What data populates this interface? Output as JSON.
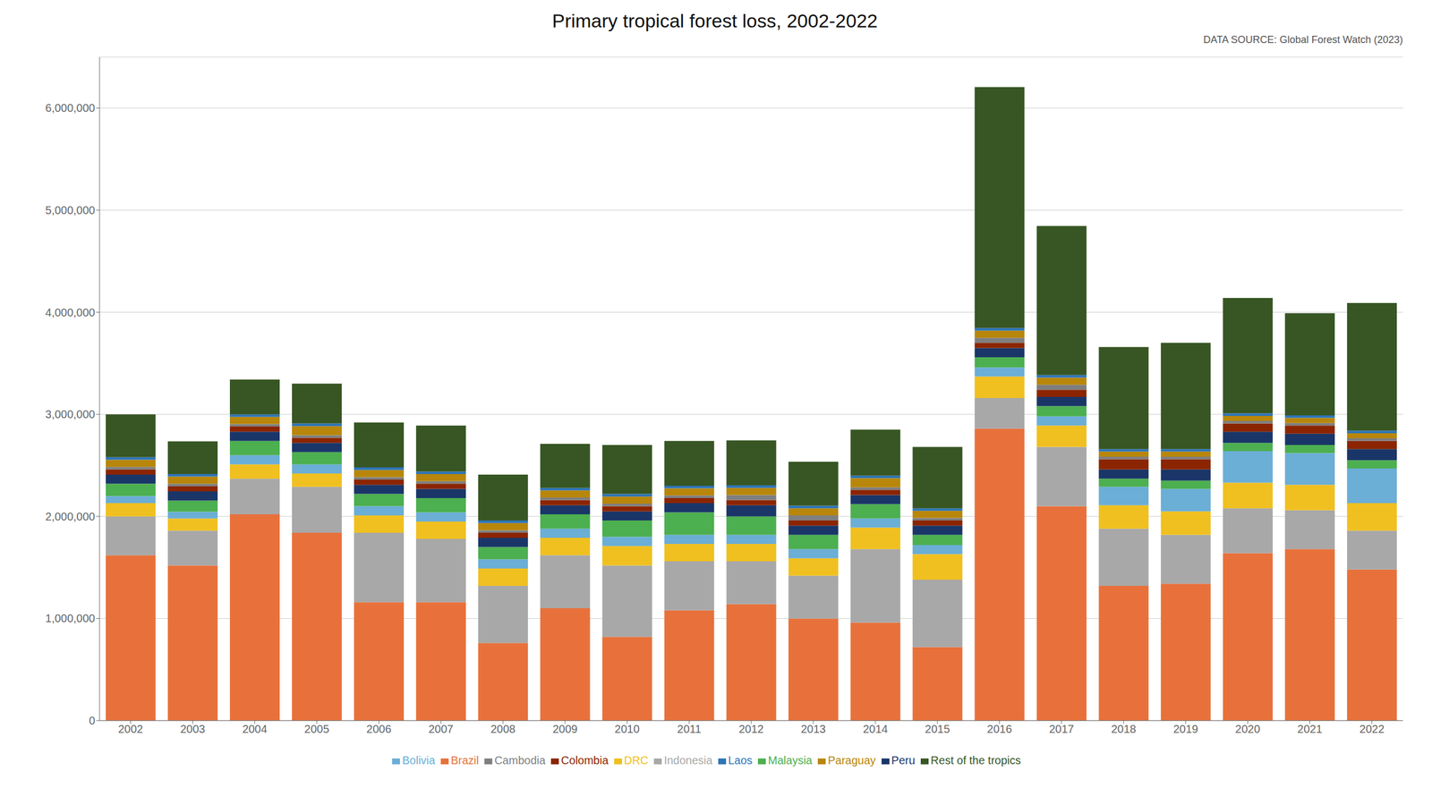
{
  "chart_data": {
    "type": "bar",
    "title": "Primary tropical forest loss, 2002-2022",
    "annotations": [
      "DATA SOURCE: Global Forest Watch (2023)"
    ],
    "stacked": true,
    "grid": true,
    "legend": "bottom",
    "categories": [
      "2002",
      "2003",
      "2004",
      "2005",
      "2006",
      "2007",
      "2008",
      "2009",
      "2010",
      "2011",
      "2012",
      "2013",
      "2014",
      "2015",
      "2016",
      "2017",
      "2018",
      "2019",
      "2020",
      "2021",
      "2022"
    ],
    "series": [
      {
        "name": "Brazil",
        "color": "#E8713B",
        "values": [
          1620000,
          1520000,
          2020000,
          1840000,
          1160000,
          1160000,
          760000,
          1100000,
          820000,
          1080000,
          1140000,
          1000000,
          960000,
          720000,
          2860000,
          2100000,
          1320000,
          1340000,
          1640000,
          1680000,
          1480000
        ]
      },
      {
        "name": "Indonesia",
        "color": "#A8A8A8",
        "values": [
          380000,
          340000,
          350000,
          450000,
          680000,
          620000,
          560000,
          520000,
          700000,
          480000,
          420000,
          420000,
          720000,
          660000,
          300000,
          580000,
          560000,
          480000,
          440000,
          380000,
          380000
        ]
      },
      {
        "name": "DRC",
        "color": "#F0C020",
        "values": [
          130000,
          120000,
          140000,
          130000,
          170000,
          170000,
          170000,
          170000,
          190000,
          170000,
          170000,
          170000,
          210000,
          250000,
          210000,
          210000,
          230000,
          230000,
          250000,
          250000,
          270000
        ]
      },
      {
        "name": "Bolivia",
        "color": "#6BAED6",
        "values": [
          70000,
          65000,
          90000,
          90000,
          90000,
          90000,
          90000,
          90000,
          90000,
          90000,
          90000,
          90000,
          90000,
          90000,
          90000,
          90000,
          180000,
          220000,
          310000,
          310000,
          340000
        ]
      },
      {
        "name": "Malaysia",
        "color": "#4CAF50",
        "values": [
          120000,
          110000,
          140000,
          120000,
          120000,
          140000,
          120000,
          140000,
          160000,
          220000,
          180000,
          140000,
          140000,
          100000,
          100000,
          100000,
          80000,
          80000,
          80000,
          80000,
          80000
        ]
      },
      {
        "name": "Peru",
        "color": "#1A3668",
        "values": [
          90000,
          90000,
          90000,
          90000,
          90000,
          90000,
          90000,
          90000,
          90000,
          90000,
          110000,
          90000,
          90000,
          90000,
          90000,
          90000,
          90000,
          110000,
          110000,
          110000,
          110000
        ]
      },
      {
        "name": "Colombia",
        "color": "#8B2500",
        "values": [
          50000,
          50000,
          50000,
          50000,
          50000,
          50000,
          50000,
          50000,
          50000,
          50000,
          50000,
          50000,
          50000,
          50000,
          50000,
          70000,
          100000,
          100000,
          80000,
          80000,
          80000
        ]
      },
      {
        "name": "Cambodia",
        "color": "#7F7F7F",
        "values": [
          25000,
          25000,
          25000,
          25000,
          25000,
          25000,
          25000,
          25000,
          25000,
          25000,
          50000,
          50000,
          25000,
          25000,
          50000,
          50000,
          25000,
          25000,
          25000,
          25000,
          25000
        ]
      },
      {
        "name": "Paraguay",
        "color": "#B8860B",
        "values": [
          70000,
          70000,
          70000,
          90000,
          70000,
          70000,
          70000,
          70000,
          70000,
          70000,
          70000,
          70000,
          90000,
          70000,
          70000,
          70000,
          50000,
          50000,
          50000,
          50000,
          50000
        ]
      },
      {
        "name": "Laos",
        "color": "#2E75B6",
        "values": [
          25000,
          25000,
          25000,
          25000,
          25000,
          25000,
          25000,
          25000,
          25000,
          25000,
          25000,
          25000,
          25000,
          25000,
          25000,
          25000,
          25000,
          25000,
          25000,
          25000,
          25000
        ]
      },
      {
        "name": "Rest of the tropics",
        "color": "#375623",
        "values": [
          420000,
          320000,
          340000,
          390000,
          440000,
          450000,
          450000,
          430000,
          480000,
          440000,
          440000,
          430000,
          450000,
          600000,
          2360000,
          1460000,
          1000000,
          1040000,
          1130000,
          1000000,
          1250000
        ]
      }
    ],
    "ylim": [
      0,
      6500000
    ],
    "yticks": [
      0,
      {
        "value": 1000000,
        "label": "1,000,000"
      },
      {
        "value": 2000000,
        "label": "2,000,000"
      },
      {
        "value": 3000000,
        "label": "3,000,000"
      },
      {
        "value": 4000000,
        "label": "4,000,000"
      },
      {
        "value": 5000000,
        "label": "5,000,000"
      },
      {
        "value": 6000000,
        "label": "6,000,000"
      }
    ]
  }
}
